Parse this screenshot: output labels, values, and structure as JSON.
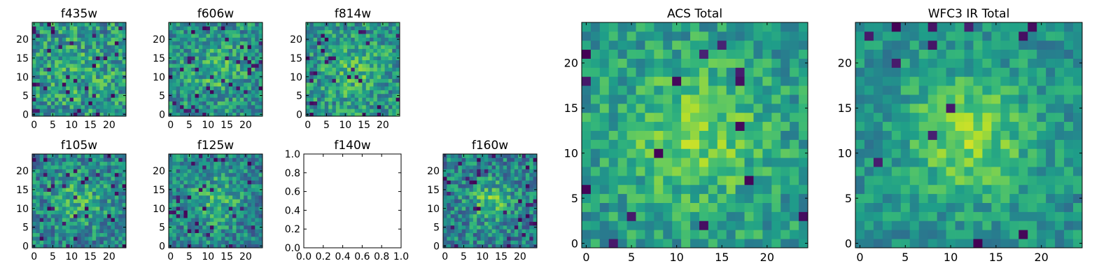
{
  "chart_data": [
    {
      "type": "heatmap",
      "title": "f435w",
      "size": 25,
      "xticks": [
        0,
        5,
        10,
        15,
        20
      ],
      "yticks": [
        0,
        5,
        10,
        15,
        20
      ],
      "xlim": [
        -0.5,
        24.5
      ],
      "ylim": [
        -0.5,
        24.5
      ],
      "colormap": "viridis",
      "seed": 11,
      "profile": {
        "peak": 0.08,
        "sigma": 6,
        "noise": 0.5,
        "base": 0.52,
        "dark_fraction": 0.05
      }
    },
    {
      "type": "heatmap",
      "title": "f606w",
      "size": 25,
      "xticks": [
        0,
        5,
        10,
        15,
        20
      ],
      "yticks": [
        0,
        5,
        10,
        15,
        20
      ],
      "xlim": [
        -0.5,
        24.5
      ],
      "ylim": [
        -0.5,
        24.5
      ],
      "colormap": "viridis",
      "seed": 23,
      "profile": {
        "peak": 0.15,
        "sigma": 5,
        "noise": 0.45,
        "base": 0.5,
        "dark_fraction": 0.05
      }
    },
    {
      "type": "heatmap",
      "title": "f814w",
      "size": 25,
      "xticks": [
        0,
        5,
        10,
        15,
        20
      ],
      "yticks": [
        0,
        5,
        10,
        15,
        20
      ],
      "xlim": [
        -0.5,
        24.5
      ],
      "ylim": [
        -0.5,
        24.5
      ],
      "colormap": "viridis",
      "seed": 37,
      "profile": {
        "peak": 0.15,
        "sigma": 5,
        "noise": 0.45,
        "base": 0.52,
        "dark_fraction": 0.05
      }
    },
    {
      "type": "heatmap",
      "title": "f105w",
      "size": 25,
      "xticks": [
        0,
        5,
        10,
        15,
        20
      ],
      "yticks": [
        0,
        5,
        10,
        15,
        20
      ],
      "xlim": [
        -0.5,
        24.5
      ],
      "ylim": [
        -0.5,
        24.5
      ],
      "colormap": "viridis",
      "seed": 41,
      "profile": {
        "peak": 0.2,
        "sigma": 5,
        "noise": 0.45,
        "base": 0.45,
        "dark_fraction": 0.07
      }
    },
    {
      "type": "heatmap",
      "title": "f125w",
      "size": 25,
      "xticks": [
        0,
        5,
        10,
        15,
        20
      ],
      "yticks": [
        0,
        5,
        10,
        15,
        20
      ],
      "xlim": [
        -0.5,
        24.5
      ],
      "ylim": [
        -0.5,
        24.5
      ],
      "colormap": "viridis",
      "seed": 53,
      "profile": {
        "peak": 0.2,
        "sigma": 5,
        "noise": 0.45,
        "base": 0.45,
        "dark_fraction": 0.07
      }
    },
    {
      "type": "empty",
      "title": "f140w",
      "xticks": [
        "0.0",
        "0.2",
        "0.4",
        "0.6",
        "0.8",
        "1.0"
      ],
      "yticks": [
        "0.0",
        "0.2",
        "0.4",
        "0.6",
        "0.8",
        "1.0"
      ],
      "xlim": [
        0,
        1
      ],
      "ylim": [
        0,
        1
      ]
    },
    {
      "type": "heatmap",
      "title": "f160w",
      "size": 25,
      "xticks": [
        0,
        5,
        10,
        15,
        20
      ],
      "yticks": [
        0,
        5,
        10,
        15,
        20
      ],
      "xlim": [
        -0.5,
        24.5
      ],
      "ylim": [
        -0.5,
        24.5
      ],
      "colormap": "viridis",
      "seed": 67,
      "profile": {
        "peak": 0.25,
        "sigma": 4,
        "noise": 0.45,
        "base": 0.45,
        "dark_fraction": 0.05
      }
    },
    {
      "type": "heatmap",
      "title": "ACS Total",
      "size": 25,
      "xticks": [
        0,
        5,
        10,
        15,
        20
      ],
      "yticks": [
        0,
        5,
        10,
        15,
        20
      ],
      "xlim": [
        -0.5,
        24.5
      ],
      "ylim": [
        -0.5,
        24.5
      ],
      "colormap": "viridis",
      "seed": 79,
      "profile": {
        "peak": 0.25,
        "sigma": 5,
        "noise": 0.35,
        "base": 0.55,
        "dark_fraction": 0.03
      }
    },
    {
      "type": "heatmap",
      "title": "WFC3 IR Total",
      "size": 25,
      "xticks": [
        0,
        5,
        10,
        15,
        20
      ],
      "yticks": [
        0,
        5,
        10,
        15,
        20
      ],
      "xlim": [
        -0.5,
        24.5
      ],
      "ylim": [
        -0.5,
        24.5
      ],
      "colormap": "viridis",
      "seed": 97,
      "profile": {
        "peak": 0.3,
        "sigma": 5,
        "noise": 0.3,
        "base": 0.5,
        "dark_fraction": 0.03
      }
    }
  ]
}
